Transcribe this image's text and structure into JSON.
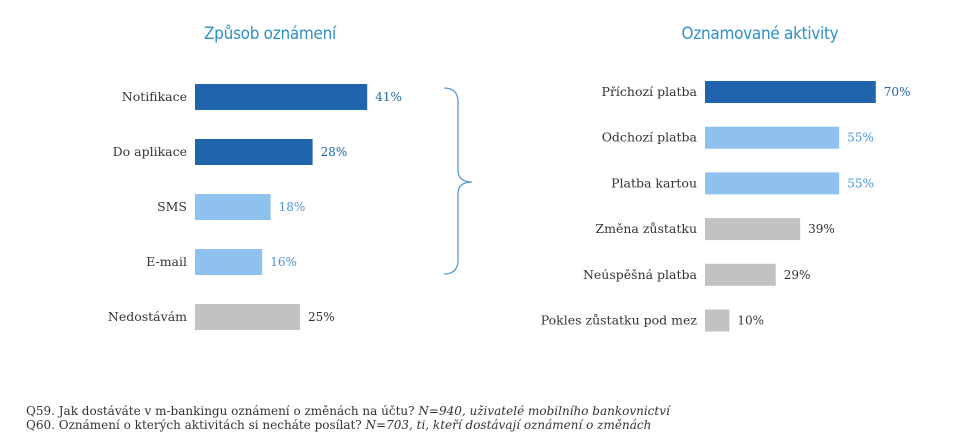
{
  "colors": {
    "dark": "#1f64ac",
    "light": "#8fc1ef",
    "gray": "#c2c2c2",
    "title": "#2f8fc8",
    "brace": "#5b9bd5"
  },
  "chart_data": [
    {
      "type": "bar",
      "orientation": "horizontal",
      "title": "Způsob oznámení",
      "categories": [
        "Notifikace",
        "Do aplikace",
        "SMS",
        "E-mail",
        "Nedostávám"
      ],
      "values": [
        41,
        28,
        18,
        16,
        25
      ],
      "value_labels": [
        "41%",
        "28%",
        "18%",
        "16%",
        "25%"
      ],
      "bar_colors": [
        "dark",
        "dark",
        "light",
        "light",
        "gray"
      ],
      "xlim": [
        0,
        100
      ],
      "grid": false
    },
    {
      "type": "bar",
      "orientation": "horizontal",
      "title": "Oznamované aktivity",
      "categories": [
        "Příchozí platba",
        "Odchozí platba",
        "Platba kartou",
        "Změna zůstatku",
        "Neúspěšná platba",
        "Pokles zůstatku pod mez"
      ],
      "values": [
        70,
        55,
        55,
        39,
        29,
        10
      ],
      "value_labels": [
        "70%",
        "55%",
        "55%",
        "39%",
        "29%",
        "10%"
      ],
      "bar_colors": [
        "dark",
        "light",
        "light",
        "gray",
        "gray",
        "gray"
      ],
      "xlim": [
        0,
        100
      ],
      "grid": false
    }
  ],
  "footnotes": {
    "q59_main": "Q59. Jak dostáváte v m-bankingu oznámení o změnách na účtu? ",
    "q59_note": "N=940, uživatelé mobilního bankovnictví",
    "q60_main": "Q60. Oznámení o kterých aktivitách si necháte posílat? ",
    "q60_note": "N=703, ti, kteří dostávají oznámení o změnách"
  }
}
